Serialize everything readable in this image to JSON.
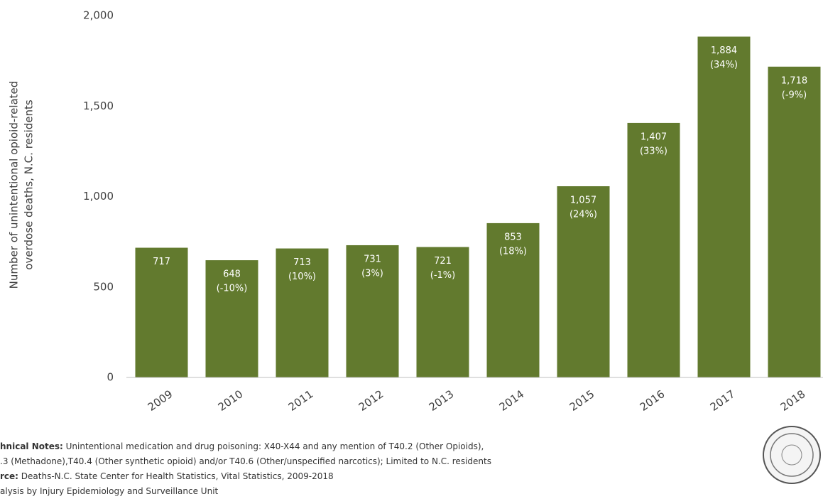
{
  "chart_data": {
    "type": "bar",
    "y_label_lines": [
      "Number of unintentional opioid-related",
      "overdose deaths, N.C. residents"
    ],
    "categories": [
      "2009",
      "2010",
      "2011",
      "2012",
      "2013",
      "2014",
      "2015",
      "2016",
      "2017",
      "2018"
    ],
    "values": [
      717,
      648,
      713,
      731,
      721,
      853,
      1057,
      1407,
      1884,
      1718
    ],
    "value_labels": [
      "717",
      "648",
      "713",
      "731",
      "721",
      "853",
      "1,057",
      "1,407",
      "1,884",
      "1,718"
    ],
    "change_labels": [
      null,
      "(-10%)",
      "(10%)",
      "(3%)",
      "(-1%)",
      "(18%)",
      "(24%)",
      "(33%)",
      "(34%)",
      "(-9%)"
    ],
    "color": "#627a2e",
    "ylim": [
      0,
      2000
    ],
    "yticks": [
      0,
      500,
      {
        "value": 1000,
        "label": "1,000"
      },
      {
        "value": 1500,
        "label": "1,500"
      },
      {
        "value": 2000,
        "label": "2,000"
      }
    ],
    "grid": false
  },
  "notes": [
    {
      "label": "hnical Notes:",
      "text": " Unintentional medication and drug poisoning: X40-X44 and any mention of T40.2 (Other Opioids),"
    },
    {
      "text": ".3 (Methadone),T40.4 (Other synthetic opioid) and/or T40.6 (Other/unspecified narcotics); Limited to N.C. residents"
    },
    {
      "label": "rce:",
      "text": " Deaths-N.C. State Center for Health Statistics, Vital Statistics, 2009-2018"
    },
    {
      "text": "alysis by Injury Epidemiology and Surveillance Unit"
    }
  ]
}
